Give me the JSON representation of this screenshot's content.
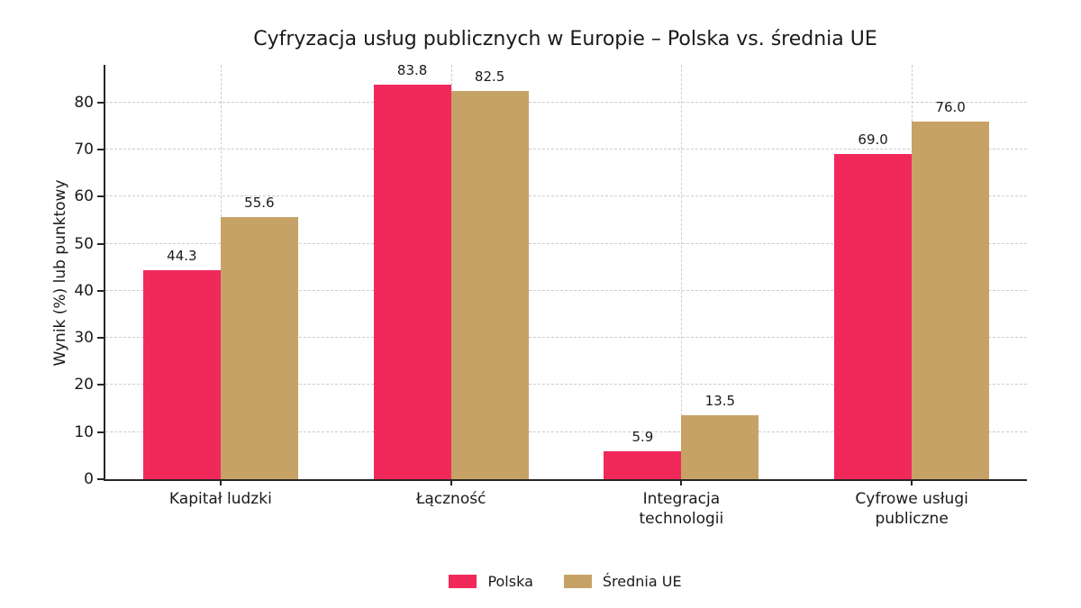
{
  "chart_data": {
    "type": "bar",
    "title": "Cyfryzacja usług publicznych w Europie – Polska vs. średnia UE",
    "ylabel": "Wynik (%) lub punktowy",
    "xlabel": "",
    "categories": [
      "Kapitał ludzki",
      "Łączność",
      "Integracja\ntechnologii",
      "Cyfrowe usługi\npubliczne"
    ],
    "series": [
      {
        "name": "Polska",
        "color": "#F1295B",
        "values": [
          44.3,
          83.8,
          5.9,
          69.0
        ]
      },
      {
        "name": "Średnia UE",
        "color": "#C6A267",
        "values": [
          55.6,
          82.5,
          13.5,
          76.0
        ]
      }
    ],
    "value_label_format": "one-decimal",
    "yticks": [
      0,
      10,
      20,
      30,
      40,
      50,
      60,
      70,
      80
    ],
    "ylim": [
      0,
      88
    ],
    "grid": "dashed-both-axes",
    "grid_color": "#cccccc",
    "legend_position": "bottom-center"
  }
}
